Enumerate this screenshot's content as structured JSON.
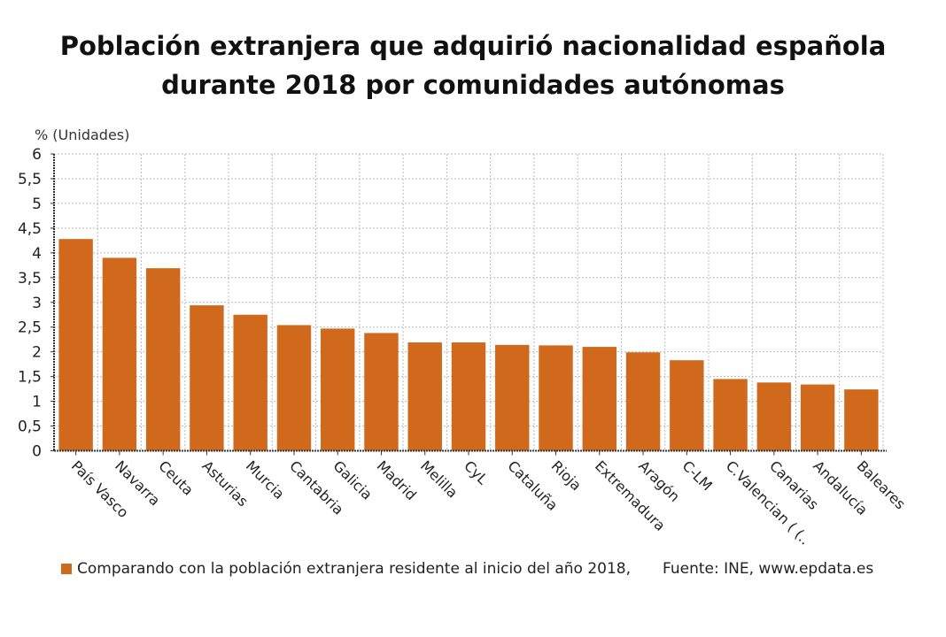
{
  "title_line1": "Población extranjera que adquirió nacionalidad española",
  "title_line2": "durante 2018 por comunidades autónomas",
  "chart_data": {
    "type": "bar",
    "ylabel": "% (Unidades)",
    "ylim": [
      0,
      6
    ],
    "yticks": [
      "0",
      "0,5",
      "1",
      "1,5",
      "2",
      "2,5",
      "3",
      "3,5",
      "4",
      "4,5",
      "5",
      "5,5",
      "6"
    ],
    "grid": true,
    "categories": [
      "País Vasco",
      "Navarra",
      "Ceuta",
      "Asturias",
      "Murcia",
      "Cantabria",
      "Galicia",
      "Madrid",
      "Melilla",
      "CyL",
      "Cataluña",
      "Rioja",
      "Extremadura",
      "Aragón",
      "C-LM",
      "C.Valencian (...)",
      "Canarias",
      "Andalucía",
      "Baleares"
    ],
    "series": [
      {
        "name": "Comparando con la población extranjera residente al inicio del año 2018,",
        "color": "#d0691c",
        "values": [
          4.28,
          3.9,
          3.69,
          2.94,
          2.75,
          2.54,
          2.47,
          2.38,
          2.19,
          2.19,
          2.14,
          2.13,
          2.1,
          1.99,
          1.83,
          1.45,
          1.38,
          1.34,
          1.24
        ]
      }
    ],
    "legend_position": "bottom-left",
    "source": "Fuente: INE, www.epdata.es"
  }
}
